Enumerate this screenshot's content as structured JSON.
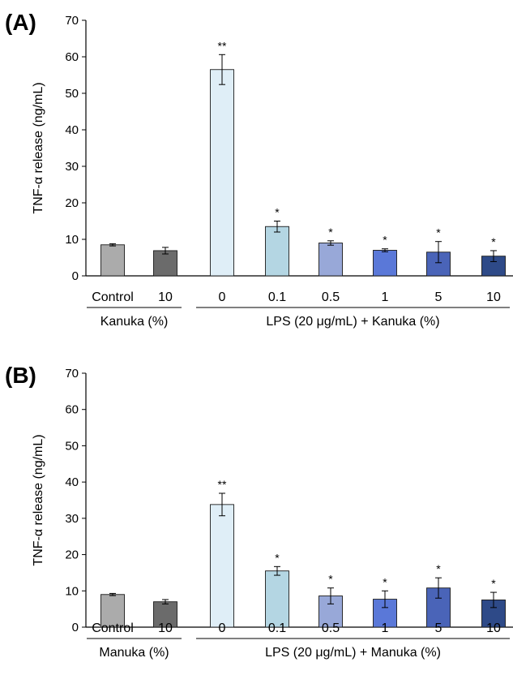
{
  "chart_data": [
    {
      "type": "bar",
      "panel_label": "(A)",
      "ylabel": "TNF-α release (ng/mL)",
      "ylim": [
        0,
        70
      ],
      "yticks": [
        "0",
        "10",
        "20",
        "30",
        "40",
        "50",
        "60",
        "70"
      ],
      "categories": [
        "Control",
        "10",
        "0",
        "0.1",
        "0.5",
        "1",
        "5",
        "10"
      ],
      "values": [
        8.5,
        6.9,
        56.5,
        13.5,
        9.0,
        7.0,
        6.5,
        5.4
      ],
      "errors": [
        0.3,
        0.9,
        4.1,
        1.5,
        0.6,
        0.4,
        2.9,
        1.5
      ],
      "significance": [
        "",
        "",
        "**",
        "*",
        "*",
        "*",
        "*",
        "*"
      ],
      "colors": [
        "#ababab",
        "#6b6b6b",
        "#dfeef7",
        "#b4d6e3",
        "#98a8d8",
        "#5a78d8",
        "#4a64b8",
        "#2e4a88"
      ],
      "groups": [
        {
          "label": "Kanuka (%)",
          "start": 0,
          "end": 1
        },
        {
          "label": "LPS (20 μg/mL) + Kanuka (%)",
          "start": 2,
          "end": 7
        }
      ]
    },
    {
      "type": "bar",
      "panel_label": "(B)",
      "ylabel": "TNF-α release (ng/mL)",
      "ylim": [
        0,
        70
      ],
      "yticks": [
        "0",
        "10",
        "20",
        "30",
        "40",
        "50",
        "60",
        "70"
      ],
      "categories": [
        "Control",
        "10",
        "0",
        "0.1",
        "0.5",
        "1",
        "5",
        "10"
      ],
      "values": [
        9.0,
        7.0,
        33.8,
        15.5,
        8.6,
        7.7,
        10.8,
        7.5
      ],
      "errors": [
        0.3,
        0.6,
        3.1,
        1.2,
        2.2,
        2.3,
        2.8,
        2.1
      ],
      "significance": [
        "",
        "",
        "**",
        "*",
        "*",
        "*",
        "*",
        "*"
      ],
      "colors": [
        "#ababab",
        "#6b6b6b",
        "#dfeef7",
        "#b4d6e3",
        "#98a8d8",
        "#5a78d8",
        "#4a64b8",
        "#2e4a88"
      ],
      "groups": [
        {
          "label": "Manuka (%)",
          "start": 0,
          "end": 1
        },
        {
          "label": "LPS (20 μg/mL) + Manuka (%)",
          "start": 2,
          "end": 7
        }
      ]
    }
  ]
}
